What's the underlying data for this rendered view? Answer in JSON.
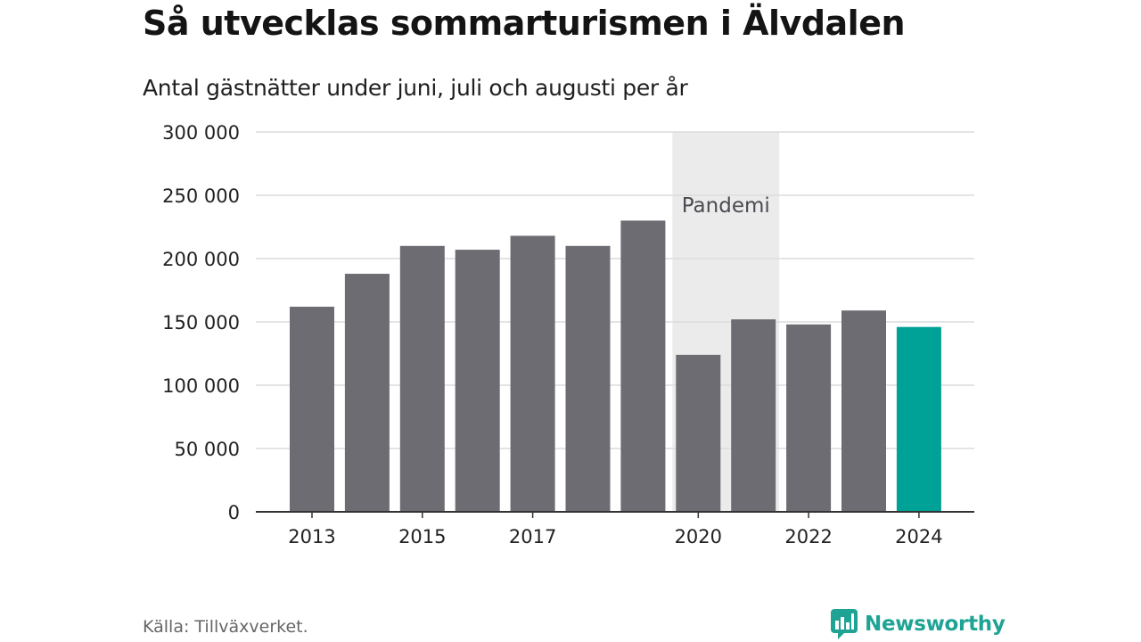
{
  "header": {
    "title": "Så utvecklas sommarturismen i Älvdalen",
    "subtitle": "Antal gästnätter under juni, juli och augusti per år"
  },
  "footer": {
    "source": "Källa: Tillväxverket.",
    "brand": "Newsworthy",
    "brand_icon": "bar-chart-speech-bubble-icon"
  },
  "colors": {
    "bar": "#6d6c72",
    "highlight": "#00a196",
    "band": "#ebebeb",
    "grid": "#dcdcdc",
    "axis": "#333333",
    "brand": "#1fa394"
  },
  "chart_data": {
    "type": "bar",
    "categories": [
      "2013",
      "2014",
      "2015",
      "2016",
      "2017",
      "2018",
      "2019",
      "2020",
      "2021",
      "2022",
      "2023",
      "2024"
    ],
    "values": [
      162000,
      188000,
      210000,
      207000,
      218000,
      210000,
      230000,
      124000,
      152000,
      148000,
      159000,
      146000
    ],
    "highlight_category": "2024",
    "x_tick_labels": [
      "2013",
      "2015",
      "2017",
      "2020",
      "2022",
      "2024"
    ],
    "y_ticks": [
      0,
      50000,
      100000,
      150000,
      200000,
      250000,
      300000
    ],
    "y_tick_labels": [
      "0",
      "50 000",
      "100 000",
      "150 000",
      "200 000",
      "250 000",
      "300 000"
    ],
    "ylim": [
      0,
      300000
    ],
    "grid": true,
    "xlabel": "",
    "ylabel": "",
    "annotations": [
      {
        "label": "Pandemi",
        "from": "2020",
        "to": "2021"
      }
    ]
  }
}
